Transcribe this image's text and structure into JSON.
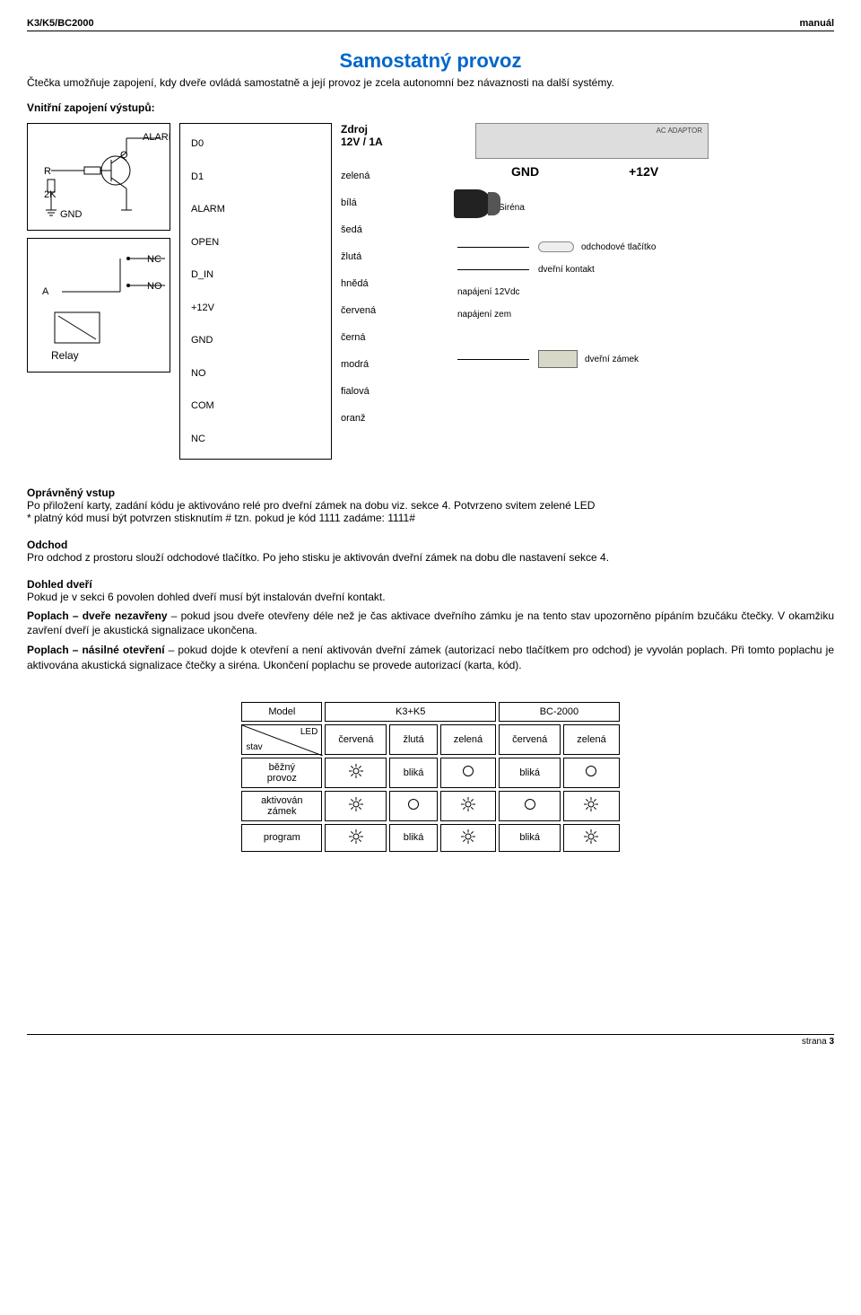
{
  "header": {
    "left": "K3/K5/BC2000",
    "right": "manuál"
  },
  "title": "Samostatný provoz",
  "intro": "Čtečka umožňuje zapojení, kdy dveře ovládá samostatně a její provoz je zcela autonomní bez návaznosti na další systémy.",
  "diagram": {
    "caption": "Vnitřní zapojení výstupů:",
    "zdroj_label": "Zdroj\n12V / 1A",
    "terminals": [
      "D0",
      "D1",
      "ALARM",
      "OPEN",
      "D_IN",
      "+12V",
      "GND",
      "NO",
      "COM",
      "NC"
    ],
    "transistor": {
      "alarm": "ALARM",
      "r": "R",
      "q": "Q",
      "r2k": "2K",
      "gnd": "GND"
    },
    "relay": {
      "title": "Relay",
      "nc": "NC",
      "no": "NO",
      "a": "A"
    },
    "wires": [
      "zelená",
      "bílá",
      "šedá",
      "žlutá",
      "hnědá",
      "červená",
      "černá",
      "modrá",
      "fialová",
      "oranž"
    ],
    "right": {
      "gnd": "GND",
      "v12": "+12V",
      "sirena": "Siréna",
      "odchod": "odchodové tlačítko",
      "kontakt": "dveřní kontakt",
      "nap12": "napájení 12Vdc",
      "napzem": "napájení zem",
      "zamek": "dveřní zámek"
    }
  },
  "sections": {
    "opravneny": {
      "title": "Oprávněný vstup",
      "body": "Po přiložení karty, zadání kódu je aktivováno relé pro dveřní zámek na dobu viz. sekce 4. Potvrzeno svitem zelené LED",
      "note": "* platný kód musí být potvrzen stisknutím #   tzn. pokud je kód 1111  zadáme:  1111#"
    },
    "odchod": {
      "title": "Odchod",
      "body": "Pro odchod z prostoru slouží odchodové tlačítko. Po jeho stisku je aktivován dveřní zámek na dobu dle nastavení sekce 4."
    },
    "dohled": {
      "title": "Dohled dveří",
      "body": "Pokud je v sekci 6 povolen dohled dveří musí být instalován dveřní kontakt."
    },
    "poplach1": {
      "title": "Poplach – dveře nezavřeny",
      "body": " – pokud jsou dveře otevřeny déle než je čas aktivace dveřního zámku je na tento stav upozorněno pípáním bzučáku čtečky. V okamžiku zavření dveří je akustická signalizace ukončena."
    },
    "poplach2": {
      "title": "Poplach – násilné otevření",
      "body": " – pokud dojde k otevření a není aktivován dveřní zámek (autorizací nebo tlačítkem pro odchod) je vyvolán poplach. Při tomto poplachu je aktivována akustická signalizace čtečky a siréna. Ukončení poplachu se provede autorizací (karta, kód)."
    }
  },
  "table": {
    "model": "Model",
    "k3k5": "K3+K5",
    "bc2000": "BC-2000",
    "led": "LED",
    "stav": "stav",
    "states": [
      "běžný provoz",
      "aktivován zámek",
      "program"
    ],
    "colors_k": [
      "červená",
      "žlutá",
      "zelená"
    ],
    "colors_b": [
      "červená",
      "zelená"
    ],
    "blika": "bliká",
    "cells": {
      "k_bezny": [
        "sun",
        "blika",
        "circle"
      ],
      "k_aktiv": [
        "sun",
        "circle",
        "sun"
      ],
      "k_program": [
        "sun",
        "blika",
        "sun"
      ],
      "b_bezny": [
        "blika",
        "circle"
      ],
      "b_aktiv": [
        "circle",
        "sun"
      ],
      "b_program": [
        "blika",
        "sun"
      ]
    }
  },
  "footer": {
    "strana": "strana",
    "page": "3"
  },
  "colors": {
    "title": "#0066cc",
    "borders": "#000000"
  }
}
